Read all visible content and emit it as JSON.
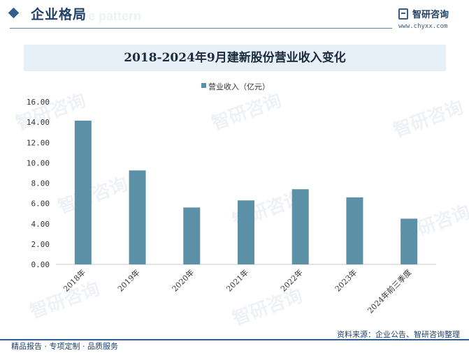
{
  "header": {
    "title": "企业格局",
    "ghost_text": "e pattern"
  },
  "logo": {
    "name": "智研咨询",
    "url": "www.chyxx.com"
  },
  "watermark": "智研咨询",
  "colors": {
    "bar": "#5b90a6",
    "brand": "#2f5f8d",
    "title_band": "#e8f0f7"
  },
  "chart_data": {
    "type": "bar",
    "title": "2018-2024年9月建新股份营业收入变化",
    "categories": [
      "2018年",
      "2019年",
      "2020年",
      "2021年",
      "2022年",
      "2023年",
      "2024年前三季度"
    ],
    "series": [
      {
        "name": "营业收入（亿元）",
        "values": [
          14.15,
          9.25,
          5.6,
          6.3,
          7.4,
          6.6,
          4.5
        ]
      }
    ],
    "yticks": [
      "0.00",
      "2.00",
      "4.00",
      "6.00",
      "8.00",
      "10.00",
      "12.00",
      "14.00",
      "16.00"
    ],
    "ylim": [
      0,
      16
    ],
    "xlabel": "",
    "ylabel": "",
    "grid": false,
    "legend": "top-center"
  },
  "footer": {
    "slogan": "精品报告 · 专项定制 · 品质服务",
    "source": "资料来源：企业公告、智研咨询整理"
  }
}
